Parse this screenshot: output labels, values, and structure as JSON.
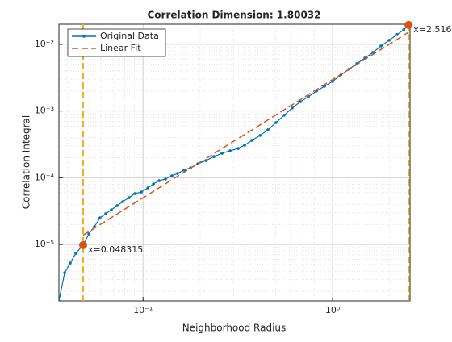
{
  "chart_data": {
    "type": "line",
    "title": "Correlation Dimension: 1.80032",
    "xlabel": "Neighborhood Radius",
    "ylabel": "Correlation Integral",
    "xscale": "log",
    "yscale": "log",
    "grid": true,
    "minor_grid": true,
    "legend": "upper left",
    "xlim": [
      0.036,
      2.56
    ],
    "ylim": [
      1.43e-06,
      0.02
    ],
    "xticks": [
      {
        "value": 0.1,
        "label": "10⁻¹"
      },
      {
        "value": 1,
        "label": "10⁰"
      }
    ],
    "yticks": [
      {
        "value": 1e-05,
        "label": "10⁻⁵"
      },
      {
        "value": 0.0001,
        "label": "10⁻⁴"
      },
      {
        "value": 0.001,
        "label": "10⁻³"
      },
      {
        "value": 0.01,
        "label": "10⁻²"
      }
    ],
    "series": [
      {
        "name": "Original Data",
        "color": "#0072BD",
        "dashed": false,
        "dots": true,
        "x": [
          0.036,
          0.0386,
          0.0413,
          0.0442,
          0.048315,
          0.0518,
          0.0554,
          0.0593,
          0.0636,
          0.0681,
          0.0729,
          0.0781,
          0.0845,
          0.0905,
          0.098,
          0.106,
          0.1135,
          0.1215,
          0.1313,
          0.142,
          0.152,
          0.1645,
          0.178,
          0.1945,
          0.2143,
          0.2365,
          0.261,
          0.2877,
          0.3177,
          0.3436,
          0.375,
          0.414,
          0.456,
          0.503,
          0.555,
          0.612,
          0.676,
          0.745,
          0.822,
          0.906,
          1.0,
          1.103,
          1.217,
          1.342,
          1.48,
          1.633,
          1.801,
          1.986,
          2.19,
          2.37,
          2.516
        ],
        "values": [
          1.43e-06,
          3.78e-06,
          5.28e-06,
          7.38e-06,
          9.8e-06,
          1.44e-05,
          1.85e-05,
          2.51e-05,
          2.89e-05,
          3.32e-05,
          3.81e-05,
          4.38e-05,
          5.04e-05,
          5.79e-05,
          6.12e-05,
          7.03e-05,
          8.09e-05,
          9.04e-05,
          9.56e-05,
          0.000107,
          0.000116,
          0.00013,
          0.000141,
          0.000162,
          0.000181,
          0.000208,
          0.000233,
          0.000254,
          0.000275,
          0.000308,
          0.000364,
          0.000431,
          0.000523,
          0.000671,
          0.000863,
          0.00111,
          0.00138,
          0.00164,
          0.00199,
          0.00235,
          0.00278,
          0.00347,
          0.00422,
          0.00513,
          0.00622,
          0.00757,
          0.00946,
          0.0115,
          0.014,
          0.0165,
          0.0195
        ]
      },
      {
        "name": "Linear Fit",
        "color": "#D95319",
        "dashed": true,
        "dots": false,
        "x": [
          0.048315,
          2.516
        ],
        "values": [
          1.38e-05,
          0.0152
        ]
      }
    ],
    "markers": {
      "x": [
        0.048315,
        2.516
      ],
      "values": [
        9.8e-06,
        0.0195
      ],
      "labels": [
        "x=0.048315",
        "x=2.516"
      ],
      "color": "#D95319",
      "line_color": "#EDB120"
    }
  }
}
